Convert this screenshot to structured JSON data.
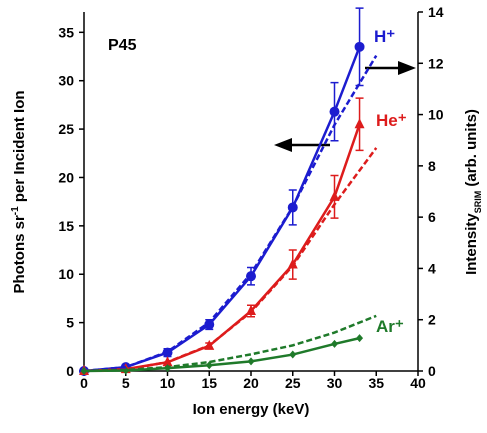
{
  "chart_data": {
    "type": "line",
    "annotation": "P45",
    "xlabel": "Ion energy (keV)",
    "ylabel": [
      "Photons sr",
      "-1",
      " per Incident Ion"
    ],
    "y2label": [
      "Intensity",
      "SRIM",
      " (arb. units)"
    ],
    "xlim": [
      0,
      40
    ],
    "xticks": [
      0,
      5,
      10,
      15,
      20,
      25,
      30,
      35,
      40
    ],
    "ylim": [
      0,
      37.1
    ],
    "yticks": [
      0,
      5,
      10,
      15,
      20,
      25,
      30,
      35
    ],
    "y2lim": [
      0,
      14
    ],
    "y2ticks": [
      0,
      2,
      4,
      6,
      8,
      10,
      12,
      14
    ],
    "series": [
      {
        "name": "H⁺",
        "color": "#1c1ccf",
        "marker": "circle",
        "x": [
          0,
          5,
          10,
          15,
          20,
          25,
          30,
          33
        ],
        "values": [
          0,
          0.4,
          1.9,
          4.8,
          9.8,
          16.9,
          26.8,
          33.5
        ],
        "errors": [
          null,
          null,
          0.4,
          0.5,
          0.9,
          1.8,
          3.0,
          4.0
        ]
      },
      {
        "name": "He⁺",
        "color": "#dd1c1c",
        "marker": "triangle",
        "x": [
          0,
          5,
          10,
          15,
          20,
          25,
          30,
          33
        ],
        "values": [
          0,
          0.2,
          0.9,
          2.6,
          6.2,
          11.0,
          18.0,
          25.5
        ],
        "errors": [
          null,
          null,
          null,
          0.3,
          0.6,
          1.5,
          2.2,
          2.7
        ]
      },
      {
        "name": "Ar⁺",
        "color": "#1f7a2a",
        "marker": "diamond",
        "x": [
          0,
          5,
          10,
          15,
          20,
          25,
          30,
          33
        ],
        "values": [
          0,
          0.05,
          0.3,
          0.6,
          1.0,
          1.7,
          2.8,
          3.4
        ],
        "errors": [
          null,
          null,
          null,
          null,
          null,
          null,
          null,
          null
        ]
      },
      {
        "color": "#1c1ccf",
        "axis": "y2",
        "dashed": true,
        "x": [
          0,
          5,
          10,
          15,
          20,
          25,
          30,
          35
        ],
        "values": [
          0,
          0.15,
          0.75,
          1.9,
          3.8,
          6.4,
          9.6,
          12.3
        ]
      },
      {
        "color": "#dd1c1c",
        "axis": "y2",
        "dashed": true,
        "x": [
          0,
          5,
          10,
          15,
          20,
          25,
          30,
          35
        ],
        "values": [
          0,
          0.05,
          0.35,
          1.0,
          2.3,
          4.1,
          6.5,
          8.7
        ]
      },
      {
        "color": "#1f7a2a",
        "axis": "y2",
        "dashed": true,
        "x": [
          0,
          5,
          10,
          15,
          20,
          25,
          30,
          35
        ],
        "values": [
          0,
          0.04,
          0.15,
          0.35,
          0.65,
          1.0,
          1.5,
          2.15
        ]
      }
    ]
  }
}
